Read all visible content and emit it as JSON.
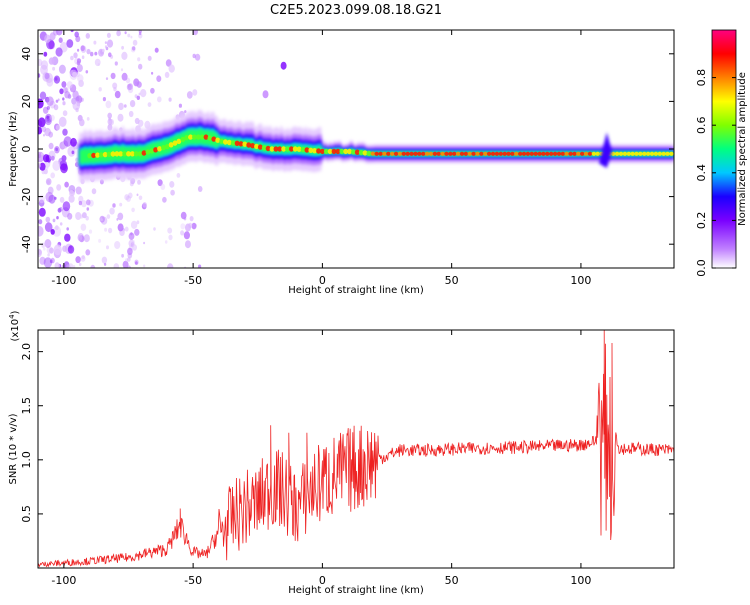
{
  "chart_data": [
    {
      "type": "heatmap",
      "title": "C2E5.2023.099.08.18.G21",
      "xlabel": "Height of straight line (km)",
      "ylabel": "Frequency (Hz)",
      "xlim": [
        -110,
        136
      ],
      "ylim": [
        -50,
        50
      ],
      "xticks": [
        -100,
        -50,
        0,
        50,
        100
      ],
      "yticks": [
        -40,
        -20,
        0,
        20,
        40
      ],
      "colorbar": {
        "label": "Normalized spectral amplitude",
        "range": [
          0,
          1
        ],
        "ticks": [
          "0.0",
          "0.2",
          "0.4",
          "0.6",
          "0.8"
        ],
        "colors": [
          "#ffffff",
          "#c080ff",
          "#7a00ff",
          "#1a00ff",
          "#00c8ff",
          "#00ff80",
          "#80ff00",
          "#ffff00",
          "#ff8000",
          "#ff0000",
          "#ff0080"
        ]
      },
      "ridge": {
        "description_points_x": [
          -92,
          -80,
          -70,
          -60,
          -52,
          -45,
          -38,
          -30,
          -20,
          -10,
          0,
          10,
          20,
          40,
          60,
          80,
          100,
          110,
          136
        ],
        "frequency_hz": [
          -3,
          -2,
          -2,
          1,
          5,
          5,
          3,
          2,
          0,
          0,
          -1,
          -1,
          -2,
          -2,
          -2,
          -2,
          -2,
          -2,
          -2
        ]
      }
    },
    {
      "type": "line",
      "xlabel": "Height of straight line (km)",
      "ylabel": "SNR (10 * v/v)",
      "yscale_label": "(x10",
      "yscale_exp": "4",
      "xlim": [
        -110,
        136
      ],
      "ylim": [
        0,
        2.2
      ],
      "xticks": [
        -100,
        -50,
        0,
        50,
        100
      ],
      "yticks": [
        "0.5",
        "1.0",
        "1.5",
        "2.0"
      ],
      "color": "#ee2222",
      "envelope": {
        "x": [
          -110,
          -90,
          -75,
          -60,
          -55,
          -50,
          -45,
          -40,
          -35,
          -30,
          -25,
          -20,
          -15,
          -10,
          -5,
          0,
          5,
          10,
          15,
          20,
          25,
          30,
          40,
          60,
          80,
          100,
          105,
          108,
          110,
          112,
          115,
          136
        ],
        "y": [
          0.02,
          0.05,
          0.08,
          0.15,
          0.35,
          0.12,
          0.1,
          0.3,
          0.45,
          0.55,
          0.6,
          0.75,
          0.7,
          0.55,
          0.7,
          0.8,
          0.85,
          0.9,
          0.95,
          1.0,
          1.05,
          1.1,
          1.1,
          1.12,
          1.13,
          1.15,
          1.18,
          1.2,
          1.1,
          1.2,
          1.12,
          1.1
        ]
      },
      "peaks": [
        {
          "x": -55,
          "y": 0.55
        },
        {
          "x": -20,
          "y": 1.32
        },
        {
          "x": -13,
          "y": 1.25
        },
        {
          "x": -6,
          "y": 1.25
        },
        {
          "x": 109,
          "y": 2.2
        },
        {
          "x": 112,
          "y": 2.08
        }
      ]
    }
  ]
}
